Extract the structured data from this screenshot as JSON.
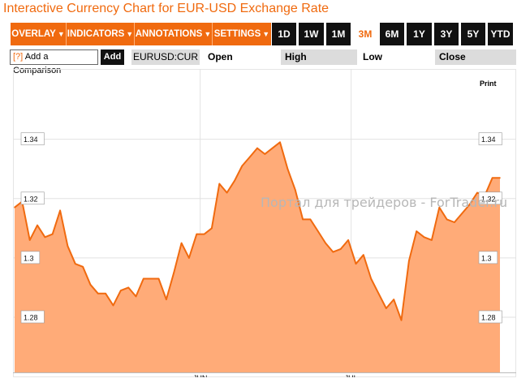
{
  "title": "Interactive Currency Chart for EUR-USD Exchange Rate",
  "menus": [
    {
      "label": "OVERLAY"
    },
    {
      "label": "INDICATORS"
    },
    {
      "label": "ANNOTATIONS"
    },
    {
      "label": "SETTINGS"
    }
  ],
  "ranges": [
    "1D",
    "1W",
    "1M",
    "3M",
    "6M",
    "1Y",
    "3Y",
    "5Y",
    "YTD"
  ],
  "active_range": "3M",
  "compare": {
    "help": "[?]",
    "label": "Add a Comparison",
    "add": "Add"
  },
  "ticker": "EURUSD:CUR",
  "stats": {
    "open": "Open",
    "high": "High",
    "low": "Low",
    "close": "Close"
  },
  "print_label": "Print",
  "watermark": "Портал для трейдеров - ForTrader.ru",
  "colors": {
    "accent": "#f06a0f",
    "fill": "#ffab78",
    "line": "#f06a0f"
  },
  "chart_data": {
    "type": "area",
    "yticks": [
      1.28,
      1.3,
      1.32,
      1.34
    ],
    "ylim": [
      1.2614,
      1.3637
    ],
    "xticks": [
      {
        "label": "JUN",
        "pos": 0.372
      },
      {
        "label": "JUL",
        "pos": 0.672
      }
    ],
    "values": [
      1.317,
      1.319,
      1.306,
      1.311,
      1.307,
      1.308,
      1.316,
      1.304,
      1.298,
      1.297,
      1.291,
      1.288,
      1.288,
      1.284,
      1.289,
      1.29,
      1.287,
      1.293,
      1.293,
      1.293,
      1.286,
      1.295,
      1.305,
      1.3,
      1.308,
      1.308,
      1.31,
      1.325,
      1.322,
      1.326,
      1.331,
      1.334,
      1.337,
      1.335,
      1.337,
      1.339,
      1.33,
      1.323,
      1.313,
      1.313,
      1.309,
      1.305,
      1.302,
      1.303,
      1.306,
      1.298,
      1.301,
      1.293,
      1.288,
      1.283,
      1.286,
      1.279,
      1.299,
      1.309,
      1.307,
      1.306,
      1.317,
      1.313,
      1.312,
      1.315,
      1.318,
      1.322,
      1.321,
      1.327,
      1.327
    ]
  }
}
